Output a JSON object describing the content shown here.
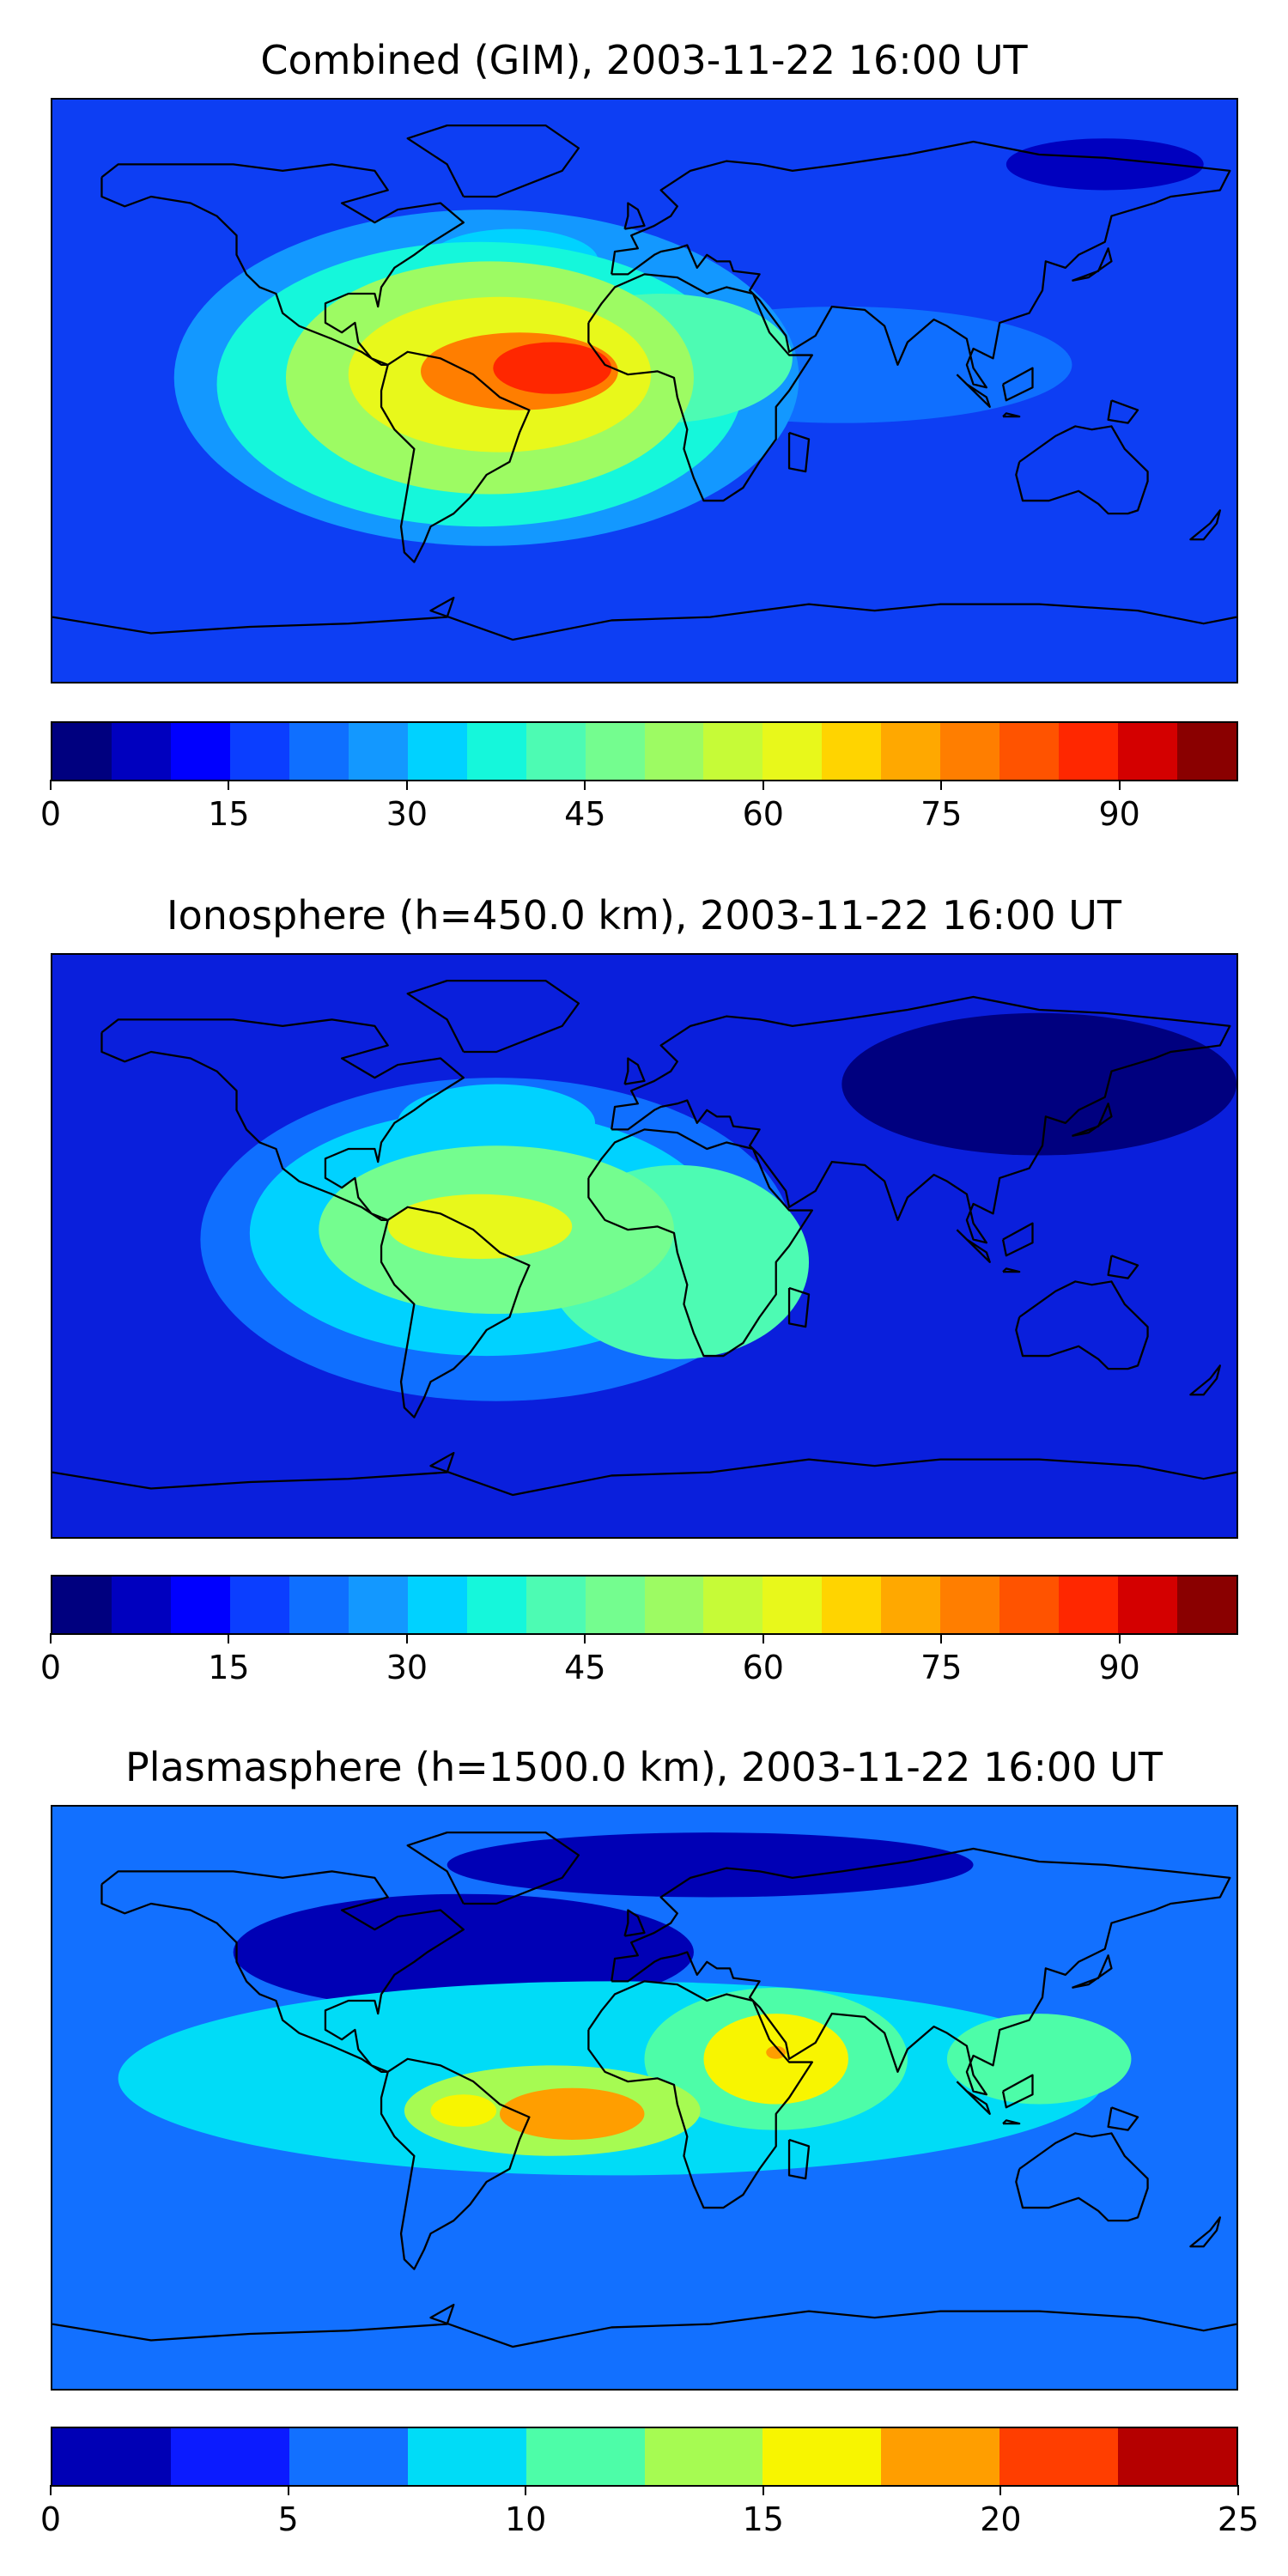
{
  "panels": [
    {
      "title": "Combined (GIM), 2003-11-22 16:00 UT",
      "colorbar": {
        "min": 0,
        "max": 100,
        "ticks": [
          "0",
          "15",
          "30",
          "45",
          "60",
          "75",
          "90"
        ],
        "colors": [
          "#00007f",
          "#0000bf",
          "#0000ff",
          "#0b3eff",
          "#0f6fff",
          "#1398ff",
          "#00d2ff",
          "#15f7db",
          "#4dfbb3",
          "#74fd8f",
          "#9dfb63",
          "#c6fb37",
          "#e8f81b",
          "#ffd400",
          "#ffa800",
          "#ff7e00",
          "#ff5300",
          "#ff2700",
          "#d40000",
          "#8a0000"
        ]
      },
      "field": {
        "background": "#0d3ef3",
        "blobs": [
          {
            "lon": -48,
            "lat": 4,
            "rx": 95,
            "ry": 52,
            "level": 28
          },
          {
            "lon": -50,
            "lat": 2,
            "rx": 80,
            "ry": 44,
            "level": 38
          },
          {
            "lon": -47,
            "lat": 4,
            "rx": 62,
            "ry": 36,
            "level": 50
          },
          {
            "lon": -44,
            "lat": 5,
            "rx": 46,
            "ry": 24,
            "level": 62
          },
          {
            "lon": -38,
            "lat": 6,
            "rx": 30,
            "ry": 12,
            "level": 78
          },
          {
            "lon": -28,
            "lat": 7,
            "rx": 18,
            "ry": 8,
            "level": 88
          },
          {
            "lon": 5,
            "lat": 10,
            "rx": 40,
            "ry": 20,
            "level": 40
          },
          {
            "lon": -40,
            "lat": 40,
            "rx": 26,
            "ry": 10,
            "level": 32
          },
          {
            "lon": 60,
            "lat": 8,
            "rx": 70,
            "ry": 18,
            "level": 22
          },
          {
            "lon": 140,
            "lat": 70,
            "rx": 30,
            "ry": 8,
            "level": 8
          }
        ]
      }
    },
    {
      "title": "Ionosphere  (h=450.0 km), 2003-11-22 16:00 UT",
      "colorbar": {
        "min": 0,
        "max": 100,
        "ticks": [
          "0",
          "15",
          "30",
          "45",
          "60",
          "75",
          "90"
        ],
        "colors": [
          "#00007f",
          "#0000bf",
          "#0000ff",
          "#0b3eff",
          "#0f6fff",
          "#1398ff",
          "#00d2ff",
          "#15f7db",
          "#4dfbb3",
          "#74fd8f",
          "#9dfb63",
          "#c6fb37",
          "#e8f81b",
          "#ffd400",
          "#ffa800",
          "#ff7e00",
          "#ff5300",
          "#ff2700",
          "#d40000",
          "#8a0000"
        ]
      },
      "field": {
        "background": "#0a1fdc",
        "blobs": [
          {
            "lon": -45,
            "lat": 2,
            "rx": 90,
            "ry": 50,
            "level": 24
          },
          {
            "lon": -48,
            "lat": 4,
            "rx": 72,
            "ry": 38,
            "level": 34
          },
          {
            "lon": -45,
            "lat": 5,
            "rx": 54,
            "ry": 26,
            "level": 46
          },
          {
            "lon": -50,
            "lat": 6,
            "rx": 28,
            "ry": 10,
            "level": 62
          },
          {
            "lon": 10,
            "lat": -5,
            "rx": 40,
            "ry": 30,
            "level": 42
          },
          {
            "lon": -45,
            "lat": 38,
            "rx": 30,
            "ry": 12,
            "level": 30
          },
          {
            "lon": 120,
            "lat": 50,
            "rx": 60,
            "ry": 22,
            "level": 3
          }
        ]
      }
    },
    {
      "title": "Plasmasphere (h=1500.0 km), 2003-11-22 16:00 UT",
      "colorbar": {
        "min": 0,
        "max": 25,
        "ticks": [
          "0",
          "5",
          "10",
          "15",
          "20",
          "25"
        ],
        "colors": [
          "#0000b5",
          "#0b1bff",
          "#1270ff",
          "#00dcf7",
          "#4dfda8",
          "#a6fb52",
          "#f8f500",
          "#ff9e00",
          "#ff3e00",
          "#b50000"
        ]
      },
      "field": {
        "background": "#1270ff",
        "blobs": [
          {
            "lon": -10,
            "lat": 6,
            "rx": 150,
            "ry": 30,
            "level": 8.5
          },
          {
            "lon": 40,
            "lat": 12,
            "rx": 40,
            "ry": 22,
            "level": 11
          },
          {
            "lon": -28,
            "lat": -4,
            "rx": 45,
            "ry": 14,
            "level": 13
          },
          {
            "lon": 40,
            "lat": 12,
            "rx": 22,
            "ry": 14,
            "level": 16
          },
          {
            "lon": -22,
            "lat": -5,
            "rx": 22,
            "ry": 8,
            "level": 18
          },
          {
            "lon": 40,
            "lat": 14,
            "rx": 3,
            "ry": 2,
            "level": 19
          },
          {
            "lon": 120,
            "lat": 12,
            "rx": 28,
            "ry": 14,
            "level": 11
          },
          {
            "lon": -55,
            "lat": -4,
            "rx": 10,
            "ry": 5,
            "level": 15
          },
          {
            "lon": -55,
            "lat": 45,
            "rx": 70,
            "ry": 18,
            "level": 1
          },
          {
            "lon": 20,
            "lat": 72,
            "rx": 80,
            "ry": 10,
            "level": 2
          },
          {
            "lon": 60,
            "lat": -30,
            "rx": 90,
            "ry": 10,
            "level": 6
          }
        ]
      }
    }
  ]
}
